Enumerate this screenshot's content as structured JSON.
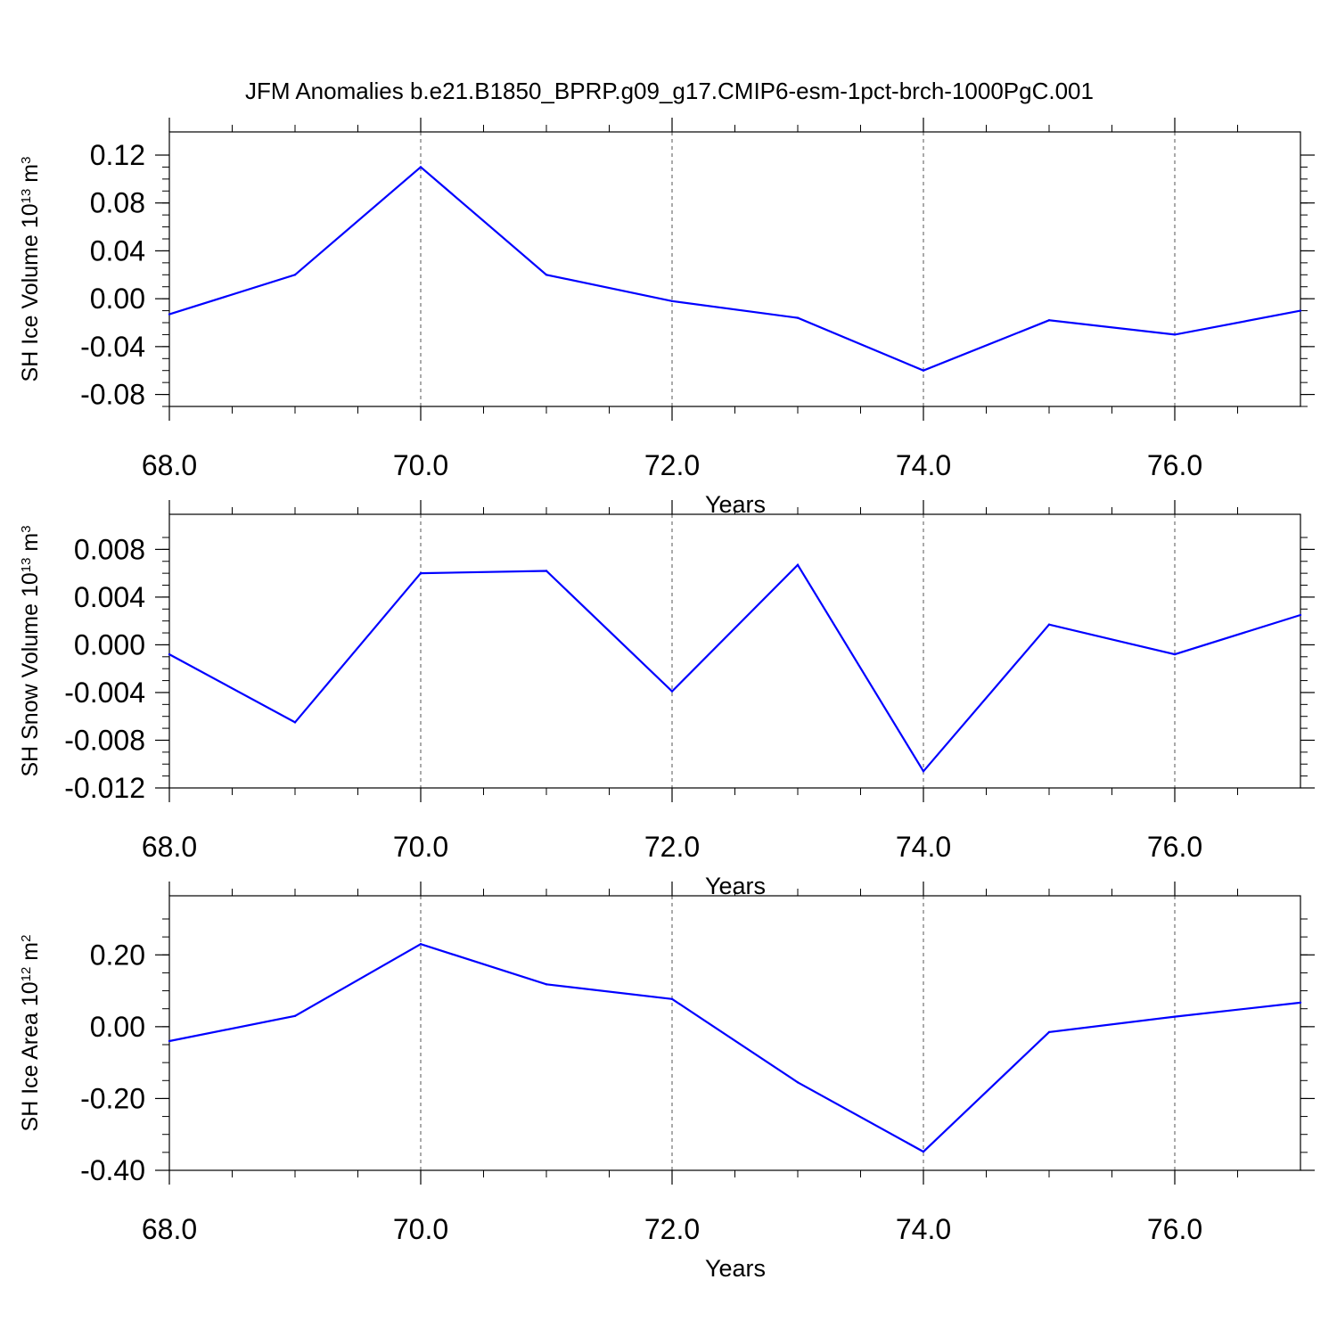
{
  "title": "JFM Anomalies b.e21.B1850_BPRP.g09_g17.CMIP6-esm-1pct-brch-1000PgC.001",
  "colors": {
    "line": "#0000ff",
    "axis": "#000000",
    "grid": "#555555"
  },
  "chart_data": [
    {
      "type": "line",
      "ylabel": {
        "base": "SH Ice Volume 10",
        "exp": "13",
        "unit": " m",
        "unit_exp": "3"
      },
      "xlabel": "Years",
      "xlim": [
        68,
        77
      ],
      "ylim": [
        -0.09,
        0.12
      ],
      "x_ticks": [
        68,
        70,
        72,
        74,
        76
      ],
      "x_tick_labels": [
        "68.0",
        "70.0",
        "72.0",
        "74.0",
        "76.0"
      ],
      "y_ticks": [
        0.12,
        0.08,
        0.04,
        0.0,
        -0.04,
        -0.08
      ],
      "y_tick_labels": [
        "0.12",
        "0.08",
        "0.04",
        "0.00",
        "-0.04",
        "-0.08"
      ],
      "x": [
        68,
        69,
        70,
        71,
        72,
        73,
        74,
        75,
        76,
        77
      ],
      "values": [
        -0.013,
        0.02,
        0.11,
        0.02,
        -0.002,
        -0.016,
        -0.06,
        -0.018,
        -0.03,
        -0.01
      ]
    },
    {
      "type": "line",
      "ylabel": {
        "base": "SH Snow Volume 10",
        "exp": "13",
        "unit": " m",
        "unit_exp": "3"
      },
      "xlabel": "Years",
      "xlim": [
        68,
        77
      ],
      "ylim": [
        -0.012,
        0.009
      ],
      "x_ticks": [
        68,
        70,
        72,
        74,
        76
      ],
      "x_tick_labels": [
        "68.0",
        "70.0",
        "72.0",
        "74.0",
        "76.0"
      ],
      "y_ticks": [
        0.008,
        0.004,
        0.0,
        -0.004,
        -0.008,
        -0.012
      ],
      "y_tick_labels": [
        "0.008",
        "0.004",
        "0.000",
        "-0.004",
        "-0.008",
        "-0.012"
      ],
      "x": [
        68,
        69,
        70,
        71,
        72,
        73,
        74,
        75,
        76,
        77
      ],
      "values": [
        -0.0008,
        -0.0065,
        0.006,
        0.0062,
        -0.0039,
        0.0067,
        -0.0106,
        0.0017,
        -0.0008,
        0.0025
      ]
    },
    {
      "type": "line",
      "ylabel": {
        "base": "SH Ice Area 10",
        "exp": "12",
        "unit": " m",
        "unit_exp": "2"
      },
      "xlabel": "Years",
      "xlim": [
        68,
        77
      ],
      "ylim": [
        -0.4,
        0.3
      ],
      "x_ticks": [
        68,
        70,
        72,
        74,
        76
      ],
      "x_tick_labels": [
        "68.0",
        "70.0",
        "72.0",
        "74.0",
        "76.0"
      ],
      "y_ticks": [
        0.2,
        0.0,
        -0.2,
        -0.4
      ],
      "y_tick_labels": [
        "0.20",
        "0.00",
        "-0.20",
        "-0.40"
      ],
      "x": [
        68,
        69,
        70,
        71,
        72,
        73,
        74,
        75,
        76,
        77
      ],
      "values": [
        -0.04,
        0.03,
        0.23,
        0.118,
        0.077,
        -0.155,
        -0.348,
        -0.015,
        0.028,
        0.067
      ]
    }
  ]
}
